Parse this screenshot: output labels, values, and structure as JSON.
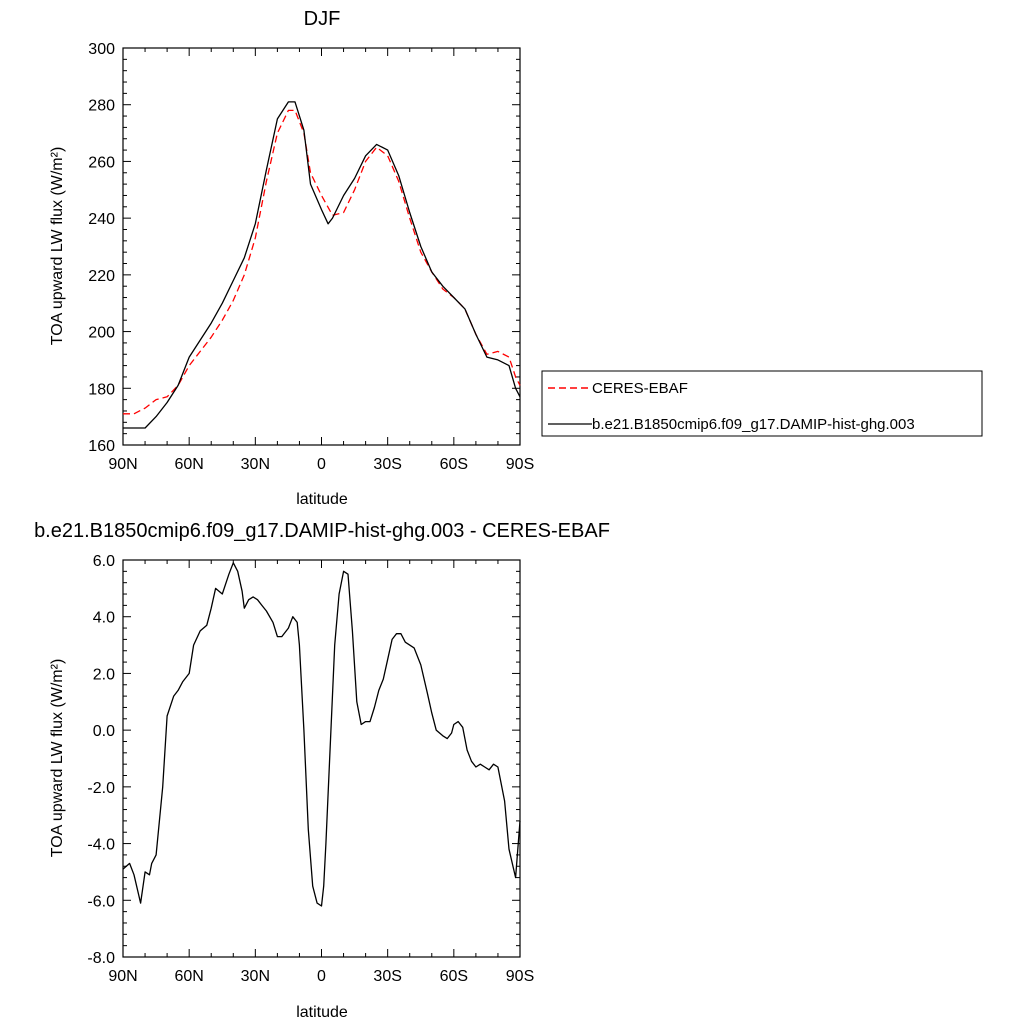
{
  "chart_data": [
    {
      "type": "line",
      "title": "DJF",
      "xlabel": "latitude",
      "ylabel": "TOA upward LW flux (W/m²)",
      "xlim": [
        -90,
        90
      ],
      "ylim": [
        160,
        300
      ],
      "xticks": [
        -90,
        -60,
        -30,
        0,
        30,
        60,
        90
      ],
      "xticklabels": [
        "90N",
        "60N",
        "30N",
        "0",
        "30S",
        "60S",
        "90S"
      ],
      "yticks": [
        160,
        180,
        200,
        220,
        240,
        260,
        280,
        300
      ],
      "yticklabels": [
        "160",
        "180",
        "200",
        "220",
        "240",
        "260",
        "280",
        "300"
      ],
      "grid": false,
      "legend_position": "right",
      "series": [
        {
          "name": "CERES-EBAF",
          "color": "#ff0000",
          "style": "dashed",
          "x": [
            -90,
            -85,
            -80,
            -75,
            -70,
            -65,
            -60,
            -55,
            -50,
            -45,
            -40,
            -35,
            -30,
            -25,
            -20,
            -15,
            -12,
            -8,
            -5,
            0,
            5,
            10,
            15,
            20,
            25,
            30,
            35,
            40,
            45,
            50,
            55,
            60,
            65,
            70,
            75,
            80,
            85,
            88,
            90
          ],
          "y": [
            171,
            171,
            173,
            176,
            177,
            181,
            188,
            193,
            198,
            204,
            211,
            220,
            233,
            253,
            270,
            278,
            278,
            270,
            256,
            248,
            241,
            242,
            250,
            260,
            265,
            262,
            253,
            240,
            228,
            221,
            215,
            212,
            208,
            199,
            192,
            193,
            191,
            184,
            181
          ]
        },
        {
          "name": "b.e21.B1850cmip6.f09_g17.DAMIP-hist-ghg.003",
          "color": "#000000",
          "style": "solid",
          "x": [
            -90,
            -85,
            -80,
            -75,
            -70,
            -65,
            -60,
            -55,
            -50,
            -45,
            -40,
            -35,
            -30,
            -25,
            -20,
            -15,
            -12,
            -8,
            -5,
            0,
            3,
            5,
            10,
            15,
            20,
            25,
            30,
            35,
            40,
            45,
            50,
            55,
            60,
            65,
            70,
            75,
            80,
            85,
            88,
            90
          ],
          "y": [
            166,
            166,
            166,
            170,
            175,
            181,
            191,
            197,
            203,
            210,
            218,
            226,
            238,
            257,
            275,
            281,
            281,
            271,
            252,
            243,
            238,
            240,
            248,
            254,
            262,
            266,
            264,
            255,
            242,
            230,
            221,
            216,
            212,
            208,
            199,
            191,
            190,
            188,
            180,
            177
          ]
        }
      ]
    },
    {
      "type": "line",
      "title": "b.e21.B1850cmip6.f09_g17.DAMIP-hist-ghg.003 - CERES-EBAF",
      "xlabel": "latitude",
      "ylabel": "TOA upward LW flux (W/m²)",
      "xlim": [
        -90,
        90
      ],
      "ylim": [
        -8,
        6
      ],
      "xticks": [
        -90,
        -60,
        -30,
        0,
        30,
        60,
        90
      ],
      "xticklabels": [
        "90N",
        "60N",
        "30N",
        "0",
        "30S",
        "60S",
        "90S"
      ],
      "yticks": [
        -8,
        -6,
        -4,
        -2,
        0,
        2,
        4,
        6
      ],
      "yticklabels": [
        "-8.0",
        "-6.0",
        "-4.0",
        "-2.0",
        "0.0",
        "2.0",
        "4.0",
        "6.0"
      ],
      "grid": false,
      "series": [
        {
          "color": "#000000",
          "style": "solid",
          "x": [
            -90,
            -87,
            -85,
            -82,
            -80,
            -78,
            -77,
            -75,
            -72,
            -70,
            -67,
            -65,
            -63,
            -60,
            -58,
            -55,
            -52,
            -50,
            -48,
            -45,
            -42,
            -40,
            -38,
            -36,
            -35,
            -33,
            -31,
            -29,
            -27,
            -25,
            -22,
            -20,
            -18,
            -15,
            -13,
            -11,
            -10,
            -8,
            -6,
            -4,
            -2,
            0,
            1,
            2,
            4,
            6,
            8,
            10,
            12,
            14,
            16,
            18,
            20,
            22,
            24,
            26,
            28,
            30,
            32,
            34,
            36,
            38,
            40,
            42,
            45,
            48,
            50,
            52,
            55,
            57,
            59,
            60,
            62,
            64,
            65,
            66,
            68,
            70,
            72,
            74,
            76,
            78,
            80,
            83,
            85,
            88,
            90
          ],
          "y": [
            -4.9,
            -4.7,
            -5.1,
            -6.1,
            -5.0,
            -5.1,
            -4.7,
            -4.4,
            -2.0,
            0.5,
            1.2,
            1.4,
            1.7,
            2.0,
            3.0,
            3.5,
            3.7,
            4.3,
            5.0,
            4.8,
            5.5,
            5.9,
            5.6,
            4.9,
            4.3,
            4.6,
            4.7,
            4.6,
            4.4,
            4.2,
            3.8,
            3.3,
            3.3,
            3.6,
            4.0,
            3.8,
            3.0,
            0.0,
            -3.5,
            -5.5,
            -6.1,
            -6.2,
            -5.5,
            -4.0,
            -0.5,
            3.0,
            4.8,
            5.6,
            5.5,
            3.5,
            1.0,
            0.2,
            0.3,
            0.3,
            0.8,
            1.4,
            1.8,
            2.5,
            3.2,
            3.4,
            3.4,
            3.1,
            3.0,
            2.9,
            2.3,
            1.3,
            0.6,
            0.0,
            -0.2,
            -0.3,
            -0.1,
            0.2,
            0.3,
            0.1,
            -0.3,
            -0.7,
            -1.1,
            -1.3,
            -1.2,
            -1.3,
            -1.4,
            -1.2,
            -1.3,
            -2.5,
            -4.2,
            -5.2,
            -3.2
          ]
        }
      ]
    }
  ]
}
